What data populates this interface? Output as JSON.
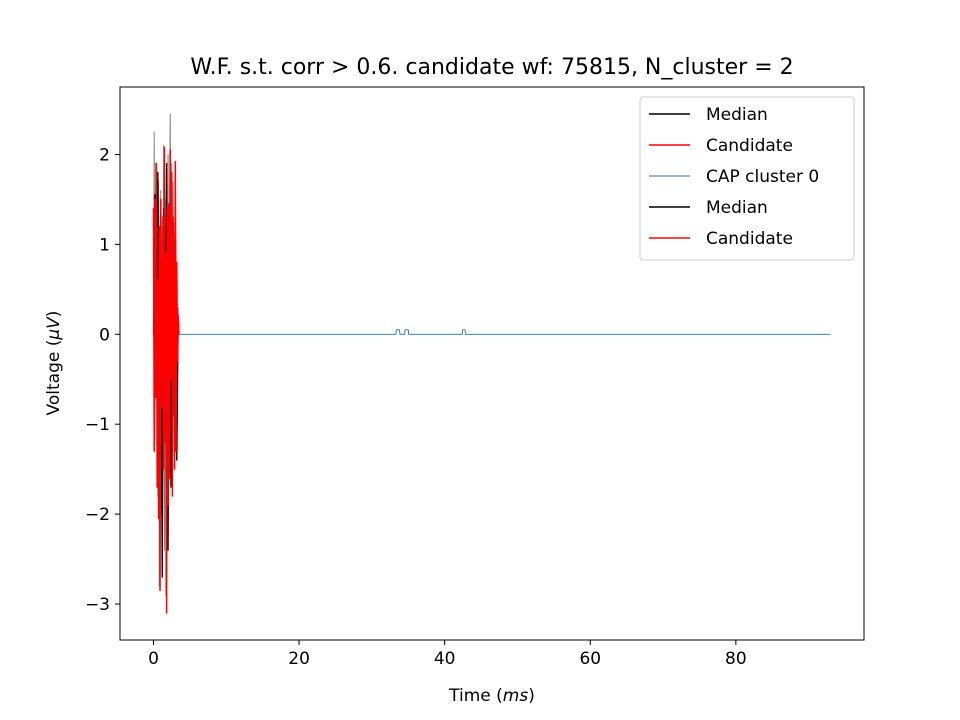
{
  "chart_data": {
    "type": "line",
    "title": "W.F. s.t. corr > 0.6. candidate wf: 75815, N_cluster = 2",
    "xlabel": {
      "text": "Time (",
      "italic": "ms",
      "suffix": ")"
    },
    "ylabel": {
      "text": "Voltage (",
      "italic": "μV",
      "suffix": ")"
    },
    "xlim": [
      -4.6,
      97.6
    ],
    "ylim": [
      -3.4,
      2.75
    ],
    "xticks": [
      0,
      20,
      40,
      60,
      80
    ],
    "xtick_labels": [
      "0",
      "20",
      "40",
      "60",
      "80"
    ],
    "yticks": [
      -3,
      -2,
      -1,
      0,
      1,
      2
    ],
    "ytick_labels": [
      "−3",
      "−2",
      "−1",
      "0",
      "1",
      "2"
    ],
    "grid": false,
    "legend_position": "top-right",
    "legend": [
      {
        "label": "Median",
        "color": "#000000"
      },
      {
        "label": "Candidate",
        "color": "#ff0000"
      },
      {
        "label": "CAP cluster 0",
        "color": "#1f77b4"
      },
      {
        "label": "Median",
        "color": "#000000"
      },
      {
        "label": "Candidate",
        "color": "#ff0000"
      }
    ],
    "series": [
      {
        "color": "#808080",
        "role": "background traces",
        "x": [
          0,
          0.1,
          0.2,
          0.3,
          0.4,
          0.5,
          0.6,
          0.7,
          0.8,
          0.9,
          1.0,
          1.1,
          1.2,
          1.3,
          1.4,
          1.5,
          1.6,
          1.7,
          1.8,
          1.9,
          2.0,
          2.1,
          2.2,
          2.3,
          2.4,
          2.5,
          2.6,
          2.7,
          2.8,
          2.9,
          3.0,
          3.1,
          3.2,
          3.3,
          3.4,
          3.5
        ],
        "y": [
          0.2,
          2.25,
          -1.2,
          1.9,
          -0.6,
          0.5,
          -1.8,
          1.7,
          -2.8,
          0.9,
          1.6,
          -2.0,
          1.2,
          0.3,
          2.1,
          -2.4,
          1.5,
          -2.9,
          1.4,
          -1.1,
          2.0,
          -1.5,
          1.3,
          2.45,
          -0.4,
          1.9,
          -1.6,
          1.7,
          0.9,
          -1.3,
          1.0,
          -0.8,
          0.6,
          -0.2,
          0.3,
          0.0
        ]
      },
      {
        "color": "#000000",
        "name": "Median",
        "x": [
          0,
          0.2,
          0.4,
          0.6,
          0.8,
          1.0,
          1.2,
          1.4,
          1.6,
          1.8,
          2.0,
          2.2,
          2.4,
          2.6,
          2.8,
          3.0,
          3.2,
          3.4,
          3.5
        ],
        "y": [
          0.0,
          1.55,
          -0.5,
          1.8,
          -1.6,
          0.9,
          -2.7,
          1.4,
          -1.0,
          1.9,
          -2.4,
          1.1,
          -1.7,
          1.3,
          -0.9,
          1.6,
          -1.4,
          0.2,
          0.0
        ]
      },
      {
        "color": "#ff0000",
        "name": "Candidate",
        "x": [
          0,
          0.1,
          0.2,
          0.3,
          0.4,
          0.5,
          0.6,
          0.7,
          0.8,
          0.9,
          1.0,
          1.1,
          1.2,
          1.3,
          1.4,
          1.5,
          1.6,
          1.7,
          1.8,
          1.9,
          2.0,
          2.1,
          2.2,
          2.3,
          2.4,
          2.5,
          2.6,
          2.7,
          2.8,
          2.9,
          3.0,
          3.1,
          3.2,
          3.3,
          3.4,
          3.5
        ],
        "y": [
          1.4,
          -1.3,
          1.5,
          -0.7,
          1.9,
          -1.7,
          0.6,
          -2.05,
          1.2,
          -2.85,
          1.5,
          0.4,
          -0.8,
          1.3,
          -1.5,
          2.08,
          -1.2,
          0.9,
          -3.1,
          1.4,
          -1.9,
          1.45,
          -1.6,
          2.05,
          -0.5,
          1.8,
          -1.8,
          1.3,
          0.8,
          -1.5,
          1.92,
          -1.3,
          0.8,
          -0.3,
          0.2,
          0.0
        ]
      },
      {
        "color": "#1f77b4",
        "name": "CAP cluster 0",
        "x": [
          3.5,
          33.3,
          33.35,
          33.8,
          33.85,
          34.5,
          34.55,
          35.0,
          35.05,
          42.4,
          42.45,
          42.8,
          42.85,
          93.0
        ],
        "y": [
          0.0,
          0.0,
          0.05,
          0.05,
          0.0,
          0.0,
          0.05,
          0.05,
          0.0,
          0.0,
          0.05,
          0.05,
          0.0,
          0.0
        ]
      }
    ]
  }
}
